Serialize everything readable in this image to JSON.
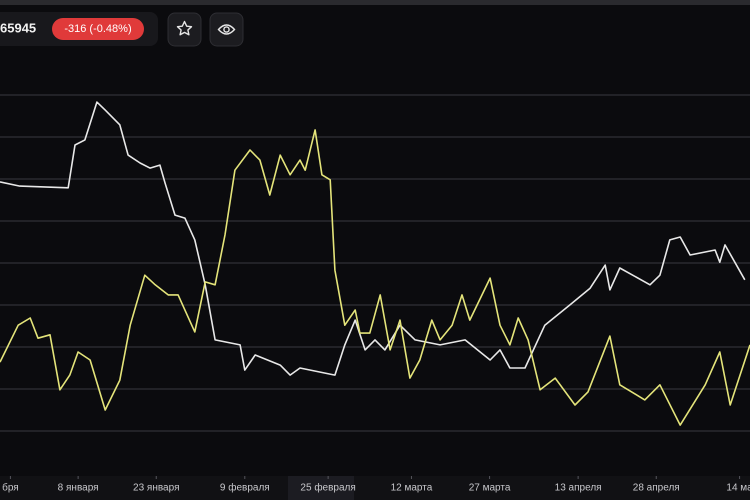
{
  "header": {
    "price": "65945",
    "change": "-316 (-0.48%)"
  },
  "chart_data": {
    "type": "line",
    "xlim": [
      -7,
      137
    ],
    "ylim": [
      0,
      10
    ],
    "xticks": [
      {
        "value": -5,
        "label": "бря"
      },
      {
        "value": 8,
        "label": "8 января"
      },
      {
        "value": 23,
        "label": "23 января"
      },
      {
        "value": 40,
        "label": "9 февраля"
      },
      {
        "value": 56,
        "label": "25 февраля"
      },
      {
        "value": 72,
        "label": "12 марта"
      },
      {
        "value": 87,
        "label": "27 марта"
      },
      {
        "value": 104,
        "label": "13 апреля"
      },
      {
        "value": 119,
        "label": "28 апреля"
      },
      {
        "value": 135,
        "label": "14 ма"
      }
    ],
    "yticks": [
      1,
      2,
      3,
      4,
      5,
      6,
      7,
      8,
      9
    ],
    "grid": true,
    "series": [
      {
        "color": "#e8e8e8",
        "x": [
          -7,
          -3.2,
          6.1,
          7.4,
          9.3,
          11.6,
          13.2,
          16.0,
          17.6,
          19.9,
          21.8,
          23.7,
          24.7,
          26.6,
          28.5,
          30.4,
          32.4,
          34.3,
          39.1,
          40.0,
          42.0,
          46.8,
          48.7,
          50.6,
          57.3,
          59.2,
          61.2,
          63.1,
          65.0,
          66.9,
          69.8,
          72.7,
          77.5,
          82.3,
          87.1,
          89.0,
          90.9,
          93.8,
          97.6,
          102.4,
          106.3,
          109.2,
          110.1,
          112.0,
          117.8,
          119.7,
          121.6,
          123.6,
          125.5,
          130.3,
          131.2,
          132.2,
          136.0
        ],
        "values": [
          6.93,
          6.83,
          6.79,
          7.81,
          7.93,
          8.83,
          8.64,
          8.29,
          7.57,
          7.38,
          7.26,
          7.33,
          6.9,
          6.14,
          6.07,
          5.55,
          4.48,
          3.17,
          3.05,
          2.45,
          2.81,
          2.57,
          2.33,
          2.5,
          2.33,
          3.05,
          3.64,
          2.93,
          3.17,
          2.93,
          3.52,
          3.17,
          3.05,
          3.17,
          2.69,
          2.93,
          2.5,
          2.5,
          3.52,
          4.0,
          4.4,
          4.95,
          4.36,
          4.88,
          4.48,
          4.71,
          5.55,
          5.62,
          5.19,
          5.31,
          5.02,
          5.43,
          4.6
        ]
      },
      {
        "color": "#e4e47a",
        "x": [
          -7,
          -3.5,
          -1.2,
          0.3,
          2.6,
          4.5,
          6.4,
          8.0,
          10.3,
          13.2,
          16.0,
          18.0,
          20.8,
          22.8,
          25.3,
          27.2,
          30.4,
          32.4,
          34.3,
          36.2,
          38.1,
          41.0,
          42.9,
          44.8,
          46.8,
          48.7,
          50.6,
          51.6,
          53.5,
          54.8,
          56.4,
          57.3,
          59.2,
          61.2,
          62.1,
          64.0,
          66.0,
          67.9,
          69.8,
          71.7,
          73.6,
          75.9,
          77.5,
          79.8,
          81.7,
          83.2,
          87.1,
          89.0,
          90.9,
          92.5,
          94.4,
          96.7,
          99.6,
          103.4,
          105.9,
          110.1,
          112.0,
          116.8,
          119.7,
          123.6,
          128.4,
          131.2,
          133.2,
          137
        ],
        "values": [
          2.64,
          3.52,
          3.69,
          3.21,
          3.29,
          1.98,
          2.33,
          2.88,
          2.69,
          1.5,
          2.21,
          3.52,
          4.71,
          4.48,
          4.24,
          4.24,
          3.36,
          4.55,
          4.48,
          5.67,
          7.21,
          7.69,
          7.45,
          6.62,
          7.57,
          7.1,
          7.45,
          7.21,
          8.17,
          7.1,
          6.98,
          4.83,
          3.52,
          3.88,
          3.33,
          3.33,
          4.24,
          2.93,
          3.64,
          2.26,
          2.69,
          3.64,
          3.17,
          3.52,
          4.24,
          3.64,
          4.64,
          3.52,
          3.05,
          3.69,
          3.17,
          1.98,
          2.26,
          1.62,
          1.93,
          3.26,
          2.1,
          1.74,
          2.1,
          1.14,
          2.1,
          2.88,
          1.62,
          3.05
        ]
      }
    ]
  }
}
